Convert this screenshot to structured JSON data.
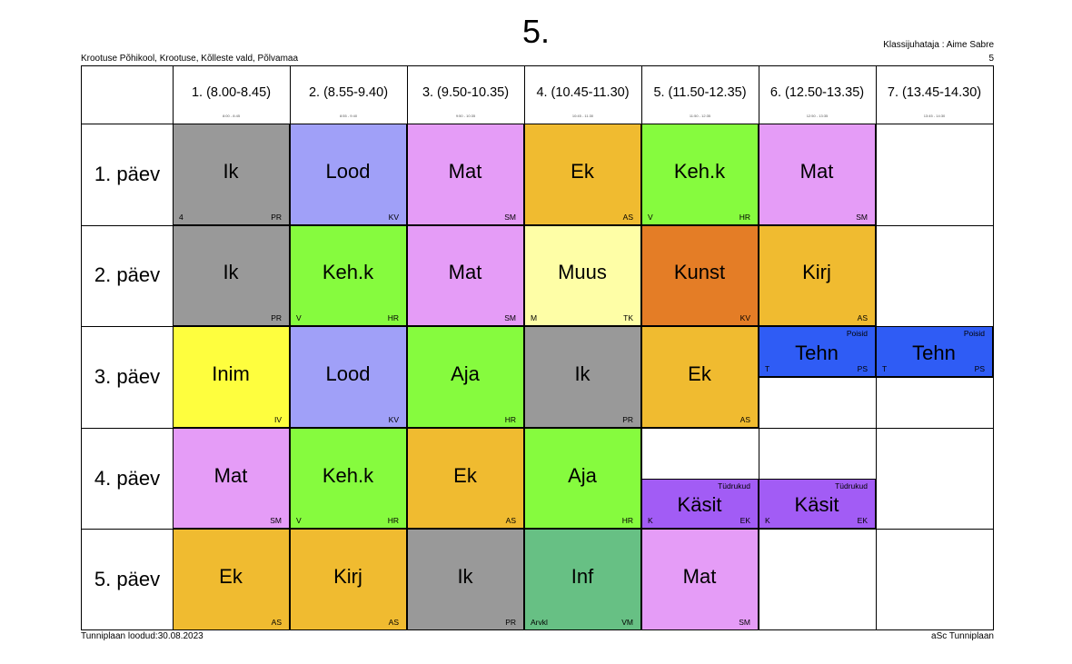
{
  "header": {
    "title": "5.",
    "school": "Krootuse Põhikool, Krootuse, Kõlleste vald, Põlvamaa",
    "teacher": "Klassijuhataja : Aime Sabre",
    "class_number": "5"
  },
  "footer": {
    "created": "Tunniplaan loodud:30.08.2023",
    "software": "aSc Tunniplaan"
  },
  "periods": [
    {
      "label": "1. (8.00-8.45)",
      "sub": "8:00 - 8:45"
    },
    {
      "label": "2. (8.55-9.40)",
      "sub": "8:55 - 9:40"
    },
    {
      "label": "3. (9.50-10.35)",
      "sub": "9:50 - 10:35"
    },
    {
      "label": "4. (10.45-11.30)",
      "sub": "10:45 - 11:30"
    },
    {
      "label": "5. (11.50-12.35)",
      "sub": "11:50 - 12:35"
    },
    {
      "label": "6. (12.50-13.35)",
      "sub": "12:50 - 13:35"
    },
    {
      "label": "7. (13.45-14.30)",
      "sub": "13:45 - 14:30"
    }
  ],
  "days": [
    "1. päev",
    "2. päev",
    "3. päev",
    "4. päev",
    "5. päev"
  ],
  "lessons": [
    {
      "day": 0,
      "period": 0,
      "subject": "Ik",
      "room": "4",
      "teacher": "PR",
      "color": "#999999"
    },
    {
      "day": 0,
      "period": 1,
      "subject": "Lood",
      "room": "",
      "teacher": "KV",
      "color": "#a0a0f8"
    },
    {
      "day": 0,
      "period": 2,
      "subject": "Mat",
      "room": "",
      "teacher": "SM",
      "color": "#e59cf7"
    },
    {
      "day": 0,
      "period": 3,
      "subject": "Ek",
      "room": "",
      "teacher": "AS",
      "color": "#f0bb30"
    },
    {
      "day": 0,
      "period": 4,
      "subject": "Keh.k",
      "room": "V",
      "teacher": "HR",
      "color": "#86fb3e"
    },
    {
      "day": 0,
      "period": 5,
      "subject": "Mat",
      "room": "",
      "teacher": "SM",
      "color": "#e59cf7"
    },
    {
      "day": 1,
      "period": 0,
      "subject": "Ik",
      "room": "",
      "teacher": "PR",
      "color": "#999999"
    },
    {
      "day": 1,
      "period": 1,
      "subject": "Keh.k",
      "room": "V",
      "teacher": "HR",
      "color": "#86fb3e"
    },
    {
      "day": 1,
      "period": 2,
      "subject": "Mat",
      "room": "",
      "teacher": "SM",
      "color": "#e59cf7"
    },
    {
      "day": 1,
      "period": 3,
      "subject": "Muus",
      "room": "M",
      "teacher": "TK",
      "color": "#fefea6"
    },
    {
      "day": 1,
      "period": 4,
      "subject": "Kunst",
      "room": "",
      "teacher": "KV",
      "color": "#e47d26"
    },
    {
      "day": 1,
      "period": 5,
      "subject": "Kirj",
      "room": "",
      "teacher": "AS",
      "color": "#f0bb30"
    },
    {
      "day": 2,
      "period": 0,
      "subject": "Inim",
      "room": "",
      "teacher": "IV",
      "color": "#fefe3e"
    },
    {
      "day": 2,
      "period": 1,
      "subject": "Lood",
      "room": "",
      "teacher": "KV",
      "color": "#a0a0f8"
    },
    {
      "day": 2,
      "period": 2,
      "subject": "Aja",
      "room": "",
      "teacher": "HR",
      "color": "#86fb3e"
    },
    {
      "day": 2,
      "period": 3,
      "subject": "Ik",
      "room": "",
      "teacher": "PR",
      "color": "#999999"
    },
    {
      "day": 2,
      "period": 4,
      "subject": "Ek",
      "room": "",
      "teacher": "AS",
      "color": "#f0bb30"
    },
    {
      "day": 2,
      "period": 5,
      "subject": "Tehn",
      "room": "T",
      "teacher": "PS",
      "group": "Poisid",
      "color": "#2f5cf5",
      "half": "top"
    },
    {
      "day": 2,
      "period": 6,
      "subject": "Tehn",
      "room": "T",
      "teacher": "PS",
      "group": "Poisid",
      "color": "#2f5cf5",
      "half": "top"
    },
    {
      "day": 3,
      "period": 0,
      "subject": "Mat",
      "room": "",
      "teacher": "SM",
      "color": "#e59cf7"
    },
    {
      "day": 3,
      "period": 1,
      "subject": "Keh.k",
      "room": "V",
      "teacher": "HR",
      "color": "#86fb3e"
    },
    {
      "day": 3,
      "period": 2,
      "subject": "Ek",
      "room": "",
      "teacher": "AS",
      "color": "#f0bb30"
    },
    {
      "day": 3,
      "period": 3,
      "subject": "Aja",
      "room": "",
      "teacher": "HR",
      "color": "#86fb3e"
    },
    {
      "day": 3,
      "period": 4,
      "subject": "Käsit",
      "room": "K",
      "teacher": "EK",
      "group": "Tüdrukud",
      "color": "#a25cf5",
      "half": "bottom"
    },
    {
      "day": 3,
      "period": 5,
      "subject": "Käsit",
      "room": "K",
      "teacher": "EK",
      "group": "Tüdrukud",
      "color": "#a25cf5",
      "half": "bottom"
    },
    {
      "day": 4,
      "period": 0,
      "subject": "Ek",
      "room": "",
      "teacher": "AS",
      "color": "#f0bb30"
    },
    {
      "day": 4,
      "period": 1,
      "subject": "Kirj",
      "room": "",
      "teacher": "AS",
      "color": "#f0bb30"
    },
    {
      "day": 4,
      "period": 2,
      "subject": "Ik",
      "room": "",
      "teacher": "PR",
      "color": "#999999"
    },
    {
      "day": 4,
      "period": 3,
      "subject": "Inf",
      "room": "Arvkl",
      "teacher": "VM",
      "color": "#67c084"
    },
    {
      "day": 4,
      "period": 4,
      "subject": "Mat",
      "room": "",
      "teacher": "SM",
      "color": "#e59cf7"
    }
  ]
}
